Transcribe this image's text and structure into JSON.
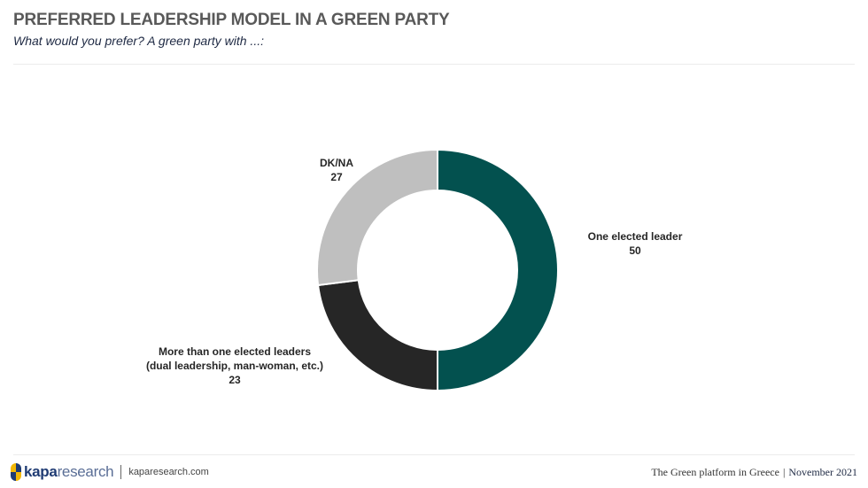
{
  "header": {
    "title": "PREFERRED LEADERSHIP MODEL IN A GREEN PARTY",
    "subtitle": "What would you prefer? A green party with ...:"
  },
  "chart_data": {
    "type": "pie",
    "donut": true,
    "slices": [
      {
        "label": "One elected leader",
        "value": 50,
        "color": "#03514f"
      },
      {
        "label": "More than one elected leaders (dual leadership, man-woman, etc.)",
        "value": 23,
        "color": "#262626"
      },
      {
        "label": "DK/NA",
        "value": 27,
        "color": "#bfbfbf"
      }
    ]
  },
  "labels": {
    "one_leader_line1": "One elected leader",
    "one_leader_value": "50",
    "more_line1": "More than one elected leaders",
    "more_line2": "(dual leadership, man-woman, etc.)",
    "more_value": "23",
    "dkna_line1": "DK/NA",
    "dkna_value": "27"
  },
  "footer": {
    "brand_bold": "kapa",
    "brand_light": "research",
    "site": "kaparesearch.com",
    "report_title": "The Green platform in Greece",
    "separator": "|",
    "date": "November 2021"
  }
}
